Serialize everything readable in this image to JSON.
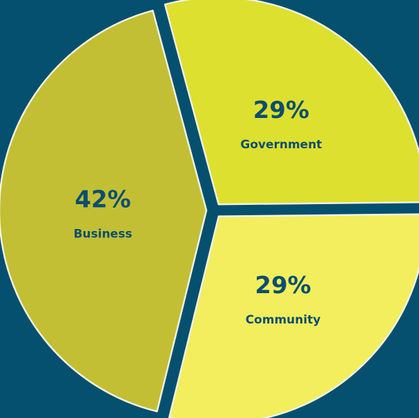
{
  "colors": {
    "background": "#05506F",
    "text": "#0B4E6E",
    "slice_border": "#F2F4E4"
  },
  "chart_data": {
    "type": "pie",
    "title": "",
    "slices": [
      {
        "label": "Government",
        "value": 29,
        "display": "29%",
        "color": "#DDE02E"
      },
      {
        "label": "Community",
        "value": 29,
        "display": "29%",
        "color": "#F2EE5E"
      },
      {
        "label": "Business",
        "value": 42,
        "display": "42%",
        "color": "#C2BF34"
      }
    ],
    "legend": "none",
    "exploded": true
  }
}
